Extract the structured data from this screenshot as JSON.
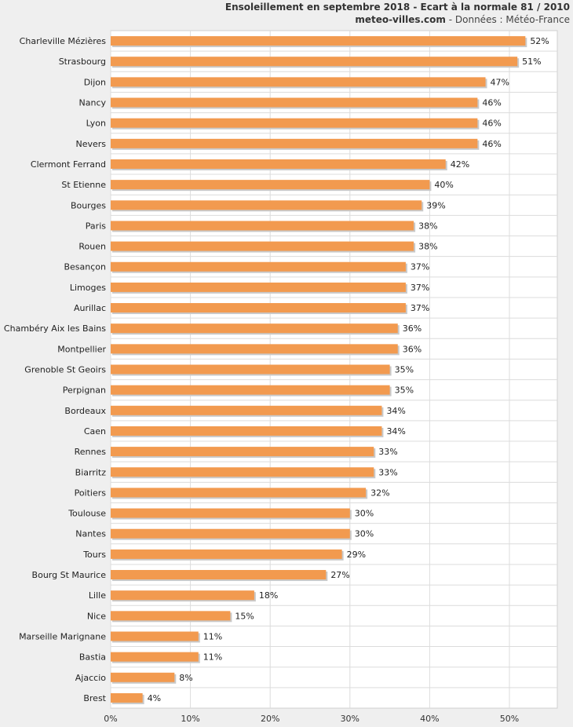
{
  "header": {
    "title": "Ensoleillement en septembre 2018 - Ecart à la normale 81 / 2010",
    "site": "meteo-villes.com",
    "source_sep": " - ",
    "source": "Données : Météo-France"
  },
  "colors": {
    "bar": "#f29a4f",
    "bar_shadow": "#c9c9c9",
    "plot_bg": "#ffffff",
    "grid": "#dcdcdc"
  },
  "chart_data": {
    "type": "bar",
    "orientation": "horizontal",
    "title": "Ensoleillement en septembre 2018 - Ecart à la normale 81 / 2010",
    "categories": [
      "Charleville Mézières",
      "Strasbourg",
      "Dijon",
      "Nancy",
      "Lyon",
      "Nevers",
      "Clermont Ferrand",
      "St Etienne",
      "Bourges",
      "Paris",
      "Rouen",
      "Besançon",
      "Limoges",
      "Aurillac",
      "Chambéry Aix les Bains",
      "Montpellier",
      "Grenoble St Geoirs",
      "Perpignan",
      "Bordeaux",
      "Caen",
      "Rennes",
      "Biarritz",
      "Poitiers",
      "Toulouse",
      "Nantes",
      "Tours",
      "Bourg St Maurice",
      "Lille",
      "Nice",
      "Marseille Marignane",
      "Bastia",
      "Ajaccio",
      "Brest"
    ],
    "values": [
      52,
      51,
      47,
      46,
      46,
      46,
      42,
      40,
      39,
      38,
      38,
      37,
      37,
      37,
      36,
      36,
      35,
      35,
      34,
      34,
      33,
      33,
      32,
      30,
      30,
      29,
      27,
      18,
      15,
      11,
      11,
      8,
      4
    ],
    "value_labels": [
      "52%",
      "51%",
      "47%",
      "46%",
      "46%",
      "46%",
      "42%",
      "40%",
      "39%",
      "38%",
      "38%",
      "37%",
      "37%",
      "37%",
      "36%",
      "36%",
      "35%",
      "35%",
      "34%",
      "34%",
      "33%",
      "33%",
      "32%",
      "30%",
      "30%",
      "29%",
      "27%",
      "18%",
      "15%",
      "11%",
      "11%",
      "8%",
      "4%"
    ],
    "x_ticks": [
      0,
      10,
      20,
      30,
      40,
      50
    ],
    "x_tick_labels": [
      "0%",
      "10%",
      "20%",
      "30%",
      "40%",
      "50%"
    ],
    "xlim": [
      0,
      56
    ],
    "grid": true,
    "legend": "none"
  }
}
